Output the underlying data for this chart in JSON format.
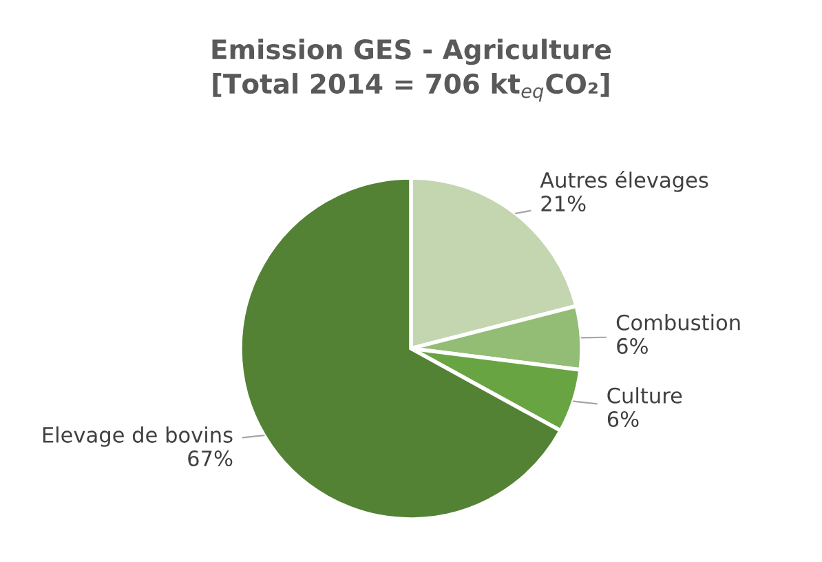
{
  "chart_data": {
    "type": "pie",
    "title": "Emission GES - Agriculture\n[Total 2014 = 706 kt$_{eq}$CO₂]",
    "categories": [
      "Autres élevages",
      "Combustion",
      "Culture",
      "Elevage de bovins"
    ],
    "values": [
      21,
      6,
      6,
      67
    ],
    "colors": [
      "#c3d6b0",
      "#93bd75",
      "#69a443",
      "#548235"
    ],
    "value_labels": [
      "21%",
      "6%",
      "6%",
      "67%"
    ]
  }
}
